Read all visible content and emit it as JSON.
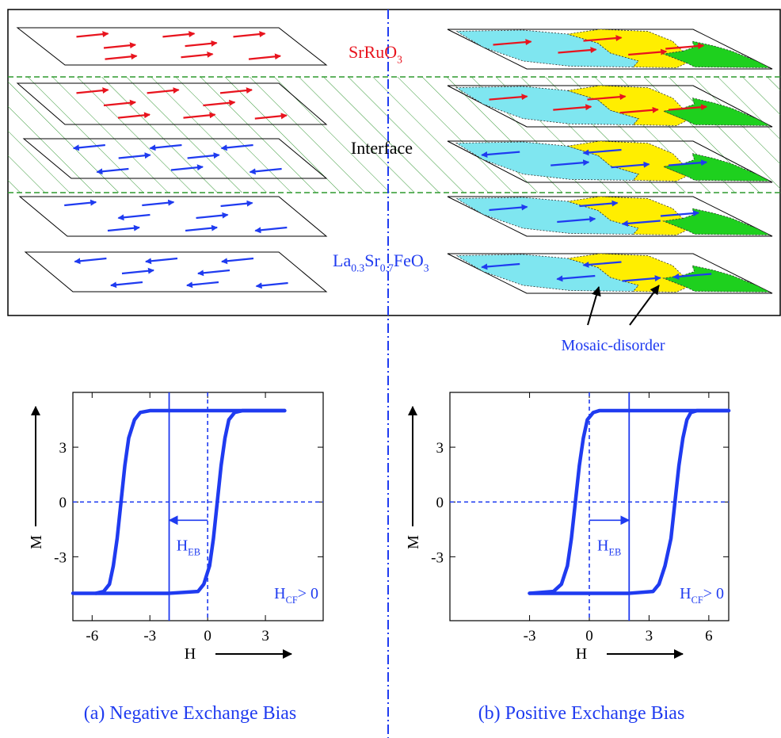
{
  "diagram": {
    "top_label": [
      "SrRuO",
      "3"
    ],
    "interface_label": "Interface",
    "bottom_label": [
      "La",
      "0.3",
      "Sr",
      "0.7",
      "FeO",
      "3"
    ],
    "mosaic_label": "Mosaic-disorder"
  },
  "chart_data": [
    {
      "type": "line",
      "caption": "(a) Negative Exchange Bias",
      "xlabel": "H",
      "ylabel": "M",
      "xlim": [
        -7,
        6
      ],
      "ylim": [
        -6.5,
        6
      ],
      "xticks": [
        -6,
        -3,
        0,
        3
      ],
      "yticks": [
        -3,
        0,
        3
      ],
      "series": [
        {
          "color": "#1f3bf0",
          "x": [
            4,
            2,
            0,
            -2,
            -3,
            -3.5,
            -3.8,
            -4.1,
            -4.3,
            -4.5,
            -4.7,
            -4.9,
            -5.1,
            -5.4,
            -5.8
          ],
          "values": [
            5,
            5,
            5,
            5,
            5,
            4.9,
            4.5,
            3.5,
            2,
            0,
            -2,
            -3.5,
            -4.5,
            -4.9,
            -5
          ]
        },
        {
          "color": "#1f3bf0",
          "x": [
            -7,
            -4,
            -2,
            -0.5,
            -0.2,
            0.1,
            0.3,
            0.5,
            0.7,
            0.9,
            1.1,
            1.4,
            1.8,
            2.5,
            4
          ],
          "values": [
            -5,
            -5,
            -5,
            -4.9,
            -4.5,
            -3.5,
            -2,
            0,
            2,
            3.5,
            4.5,
            4.9,
            5,
            5,
            5
          ]
        }
      ],
      "ref_lines": {
        "x_dashed": 0,
        "y_dashed": 0,
        "x_solid": -2,
        "arrow_y": -1
      },
      "annotations": {
        "heb": [
          "H",
          "EB"
        ],
        "hcf": [
          "H",
          "CF",
          "> 0"
        ]
      }
    },
    {
      "type": "line",
      "caption": "(b) Positive Exchange Bias",
      "xlabel": "H",
      "ylabel": "M",
      "xlim": [
        -7,
        7
      ],
      "ylim": [
        -6.5,
        6
      ],
      "xticks": [
        -3,
        0,
        3,
        6
      ],
      "yticks": [
        -3,
        0,
        3
      ],
      "series": [
        {
          "color": "#1f3bf0",
          "x": [
            -3,
            0,
            2,
            3.2,
            3.5,
            3.8,
            4.1,
            4.3,
            4.5,
            4.7,
            4.9,
            5.1,
            5.4,
            5.8,
            7
          ],
          "values": [
            -5,
            -5,
            -5,
            -4.9,
            -4.5,
            -3.5,
            -2,
            0,
            2,
            3.5,
            4.5,
            4.9,
            5,
            5,
            5
          ]
        },
        {
          "color": "#1f3bf0",
          "x": [
            7,
            4,
            2,
            1,
            0.5,
            0.2,
            -0.1,
            -0.3,
            -0.5,
            -0.7,
            -0.9,
            -1.1,
            -1.4,
            -1.8,
            -3
          ],
          "values": [
            5,
            5,
            5,
            5,
            5,
            4.9,
            4.5,
            3.5,
            2,
            0,
            -2,
            -3.5,
            -4.5,
            -4.9,
            -5
          ]
        }
      ],
      "ref_lines": {
        "x_dashed": 0,
        "y_dashed": 0,
        "x_solid": 2,
        "arrow_y": -1
      },
      "annotations": {
        "heb": [
          "H",
          "EB"
        ],
        "hcf": [
          "H",
          "CF",
          "> 0"
        ]
      }
    }
  ]
}
